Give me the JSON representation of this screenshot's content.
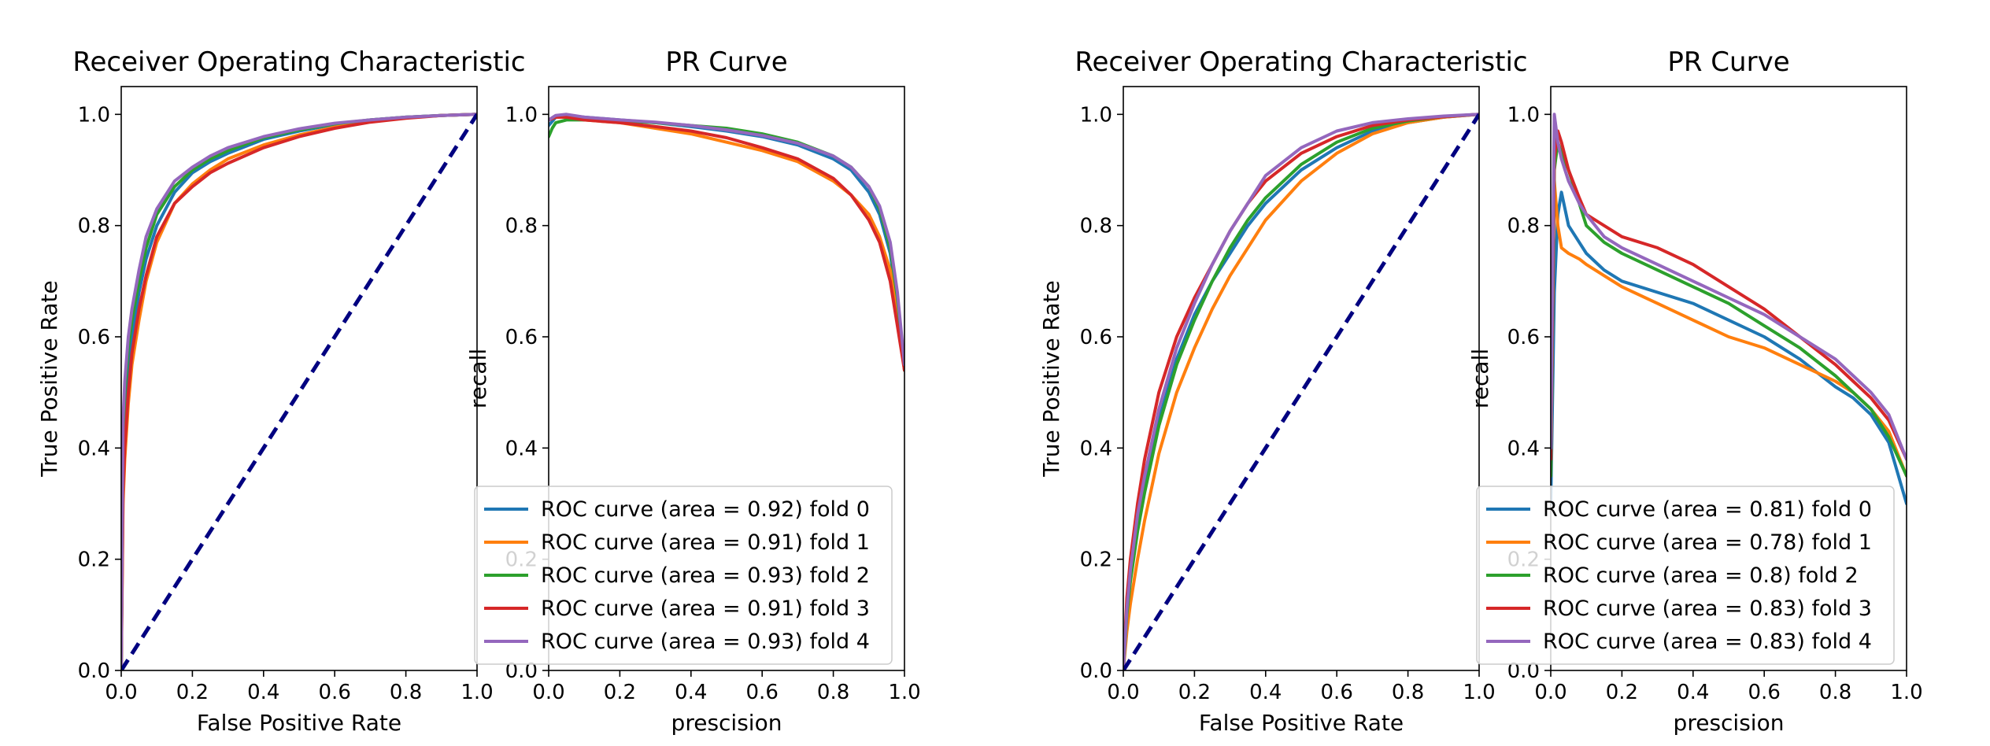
{
  "colors": {
    "fold0": "#1f77b4",
    "fold1": "#ff7f0e",
    "fold2": "#2ca02c",
    "fold3": "#d62728",
    "fold4": "#9467bd",
    "diagonal": "#000080"
  },
  "chart_data": [
    {
      "type": "line",
      "title": "Receiver Operating Characteristic",
      "xlabel": "False Positive Rate",
      "ylabel": "True Positive Rate",
      "xlim": [
        0,
        1
      ],
      "ylim": [
        0,
        1.05
      ],
      "xticks": [
        "0.0",
        "0.2",
        "0.4",
        "0.6",
        "0.8",
        "1.0"
      ],
      "yticks": [
        "0.0",
        "0.2",
        "0.4",
        "0.6",
        "0.8",
        "1.0"
      ],
      "diagonal": true,
      "series": [
        {
          "color_key": "fold0",
          "x": [
            0,
            0.005,
            0.01,
            0.02,
            0.03,
            0.05,
            0.07,
            0.1,
            0.15,
            0.2,
            0.25,
            0.3,
            0.4,
            0.5,
            0.6,
            0.7,
            0.8,
            0.9,
            1.0
          ],
          "y": [
            0,
            0.38,
            0.46,
            0.54,
            0.6,
            0.68,
            0.74,
            0.8,
            0.86,
            0.895,
            0.915,
            0.93,
            0.955,
            0.97,
            0.982,
            0.99,
            0.995,
            0.998,
            1.0
          ]
        },
        {
          "color_key": "fold1",
          "x": [
            0,
            0.005,
            0.01,
            0.02,
            0.03,
            0.05,
            0.07,
            0.1,
            0.15,
            0.2,
            0.25,
            0.3,
            0.4,
            0.5,
            0.6,
            0.7,
            0.8,
            0.9,
            1.0
          ],
          "y": [
            0,
            0.3,
            0.38,
            0.48,
            0.55,
            0.63,
            0.7,
            0.77,
            0.84,
            0.875,
            0.9,
            0.92,
            0.945,
            0.963,
            0.977,
            0.987,
            0.994,
            0.998,
            1.0
          ]
        },
        {
          "color_key": "fold2",
          "x": [
            0,
            0.005,
            0.01,
            0.02,
            0.03,
            0.05,
            0.07,
            0.1,
            0.15,
            0.2,
            0.25,
            0.3,
            0.4,
            0.5,
            0.6,
            0.7,
            0.8,
            0.9,
            1.0
          ],
          "y": [
            0,
            0.42,
            0.5,
            0.58,
            0.63,
            0.7,
            0.76,
            0.82,
            0.87,
            0.9,
            0.92,
            0.935,
            0.958,
            0.972,
            0.983,
            0.99,
            0.995,
            0.998,
            1.0
          ]
        },
        {
          "color_key": "fold3",
          "x": [
            0,
            0.005,
            0.01,
            0.02,
            0.03,
            0.05,
            0.07,
            0.1,
            0.15,
            0.2,
            0.25,
            0.3,
            0.4,
            0.5,
            0.6,
            0.7,
            0.8,
            0.9,
            1.0
          ],
          "y": [
            0,
            0.32,
            0.4,
            0.5,
            0.57,
            0.65,
            0.71,
            0.78,
            0.84,
            0.87,
            0.895,
            0.912,
            0.94,
            0.96,
            0.975,
            0.986,
            0.993,
            0.998,
            1.0
          ]
        },
        {
          "color_key": "fold4",
          "x": [
            0,
            0.005,
            0.01,
            0.02,
            0.03,
            0.05,
            0.07,
            0.1,
            0.15,
            0.2,
            0.25,
            0.3,
            0.4,
            0.5,
            0.6,
            0.7,
            0.8,
            0.9,
            1.0
          ],
          "y": [
            0,
            0.45,
            0.52,
            0.6,
            0.65,
            0.72,
            0.78,
            0.83,
            0.88,
            0.905,
            0.925,
            0.94,
            0.96,
            0.974,
            0.984,
            0.99,
            0.995,
            0.998,
            1.0
          ]
        }
      ]
    },
    {
      "type": "line",
      "title": "PR Curve",
      "xlabel": "prescision",
      "ylabel": "recall",
      "xlim": [
        0,
        1
      ],
      "ylim": [
        0,
        1.05
      ],
      "xticks": [
        "0.0",
        "0.2",
        "0.4",
        "0.6",
        "0.8",
        "1.0"
      ],
      "yticks": [
        "0.0",
        "0.2",
        "0.4",
        "0.6",
        "0.8",
        "1.0"
      ],
      "diagonal": false,
      "legend": {
        "placement": "lower-right",
        "labels": [
          "ROC curve (area = 0.92) fold 0",
          "ROC curve (area = 0.91) fold 1",
          "ROC curve (area = 0.93) fold 2",
          "ROC curve (area = 0.91) fold 3",
          "ROC curve (area = 0.93) fold 4"
        ]
      },
      "series": [
        {
          "color_key": "fold0",
          "x": [
            0,
            0.02,
            0.05,
            0.1,
            0.2,
            0.3,
            0.4,
            0.5,
            0.6,
            0.7,
            0.8,
            0.85,
            0.9,
            0.93,
            0.96,
            0.98,
            1.0
          ],
          "y": [
            0.98,
            0.995,
            0.998,
            0.995,
            0.99,
            0.985,
            0.978,
            0.97,
            0.96,
            0.945,
            0.92,
            0.9,
            0.86,
            0.82,
            0.75,
            0.66,
            0.54
          ]
        },
        {
          "color_key": "fold1",
          "x": [
            0,
            0.02,
            0.05,
            0.1,
            0.2,
            0.3,
            0.4,
            0.5,
            0.6,
            0.7,
            0.8,
            0.85,
            0.9,
            0.93,
            0.96,
            0.98,
            1.0
          ],
          "y": [
            0.99,
            0.995,
            0.995,
            0.99,
            0.985,
            0.975,
            0.965,
            0.95,
            0.935,
            0.915,
            0.88,
            0.855,
            0.82,
            0.78,
            0.72,
            0.64,
            0.54
          ]
        },
        {
          "color_key": "fold2",
          "x": [
            0,
            0.01,
            0.02,
            0.05,
            0.1,
            0.2,
            0.3,
            0.4,
            0.5,
            0.6,
            0.7,
            0.8,
            0.85,
            0.9,
            0.93,
            0.96,
            0.98,
            1.0
          ],
          "y": [
            0.96,
            0.975,
            0.985,
            0.99,
            0.99,
            0.988,
            0.985,
            0.98,
            0.975,
            0.965,
            0.95,
            0.925,
            0.905,
            0.87,
            0.83,
            0.76,
            0.67,
            0.54
          ]
        },
        {
          "color_key": "fold3",
          "x": [
            0,
            0.02,
            0.05,
            0.1,
            0.2,
            0.3,
            0.4,
            0.5,
            0.6,
            0.7,
            0.8,
            0.85,
            0.9,
            0.93,
            0.96,
            0.98,
            1.0
          ],
          "y": [
            0.99,
            0.995,
            0.995,
            0.99,
            0.985,
            0.978,
            0.97,
            0.958,
            0.94,
            0.92,
            0.885,
            0.855,
            0.81,
            0.77,
            0.7,
            0.62,
            0.54
          ]
        },
        {
          "color_key": "fold4",
          "x": [
            0,
            0.02,
            0.05,
            0.1,
            0.2,
            0.3,
            0.4,
            0.5,
            0.6,
            0.7,
            0.8,
            0.85,
            0.9,
            0.93,
            0.96,
            0.98,
            1.0
          ],
          "y": [
            0.99,
            0.998,
            1.0,
            0.995,
            0.99,
            0.986,
            0.98,
            0.972,
            0.962,
            0.948,
            0.925,
            0.905,
            0.87,
            0.835,
            0.77,
            0.68,
            0.55
          ]
        }
      ]
    },
    {
      "type": "line",
      "title": "Receiver Operating Characteristic",
      "xlabel": "False Positive Rate",
      "ylabel": "True Positive Rate",
      "xlim": [
        0,
        1
      ],
      "ylim": [
        0,
        1.05
      ],
      "xticks": [
        "0.0",
        "0.2",
        "0.4",
        "0.6",
        "0.8",
        "1.0"
      ],
      "yticks": [
        "0.0",
        "0.2",
        "0.4",
        "0.6",
        "0.8",
        "1.0"
      ],
      "diagonal": true,
      "series": [
        {
          "color_key": "fold0",
          "x": [
            0,
            0.01,
            0.02,
            0.04,
            0.06,
            0.08,
            0.1,
            0.15,
            0.2,
            0.25,
            0.3,
            0.35,
            0.4,
            0.5,
            0.6,
            0.7,
            0.8,
            0.9,
            1.0
          ],
          "y": [
            0,
            0.1,
            0.17,
            0.26,
            0.33,
            0.39,
            0.45,
            0.56,
            0.64,
            0.7,
            0.75,
            0.8,
            0.84,
            0.9,
            0.94,
            0.97,
            0.985,
            0.995,
            1.0
          ]
        },
        {
          "color_key": "fold1",
          "x": [
            0,
            0.01,
            0.02,
            0.04,
            0.06,
            0.08,
            0.1,
            0.15,
            0.2,
            0.25,
            0.3,
            0.35,
            0.4,
            0.5,
            0.6,
            0.7,
            0.8,
            0.9,
            1.0
          ],
          "y": [
            0,
            0.07,
            0.12,
            0.2,
            0.27,
            0.33,
            0.39,
            0.5,
            0.58,
            0.65,
            0.71,
            0.76,
            0.81,
            0.88,
            0.93,
            0.965,
            0.985,
            0.995,
            1.0
          ]
        },
        {
          "color_key": "fold2",
          "x": [
            0,
            0.01,
            0.02,
            0.04,
            0.06,
            0.08,
            0.1,
            0.15,
            0.2,
            0.25,
            0.3,
            0.35,
            0.4,
            0.5,
            0.6,
            0.7,
            0.8,
            0.9,
            1.0
          ],
          "y": [
            0,
            0.1,
            0.16,
            0.25,
            0.32,
            0.38,
            0.44,
            0.55,
            0.63,
            0.7,
            0.76,
            0.81,
            0.85,
            0.91,
            0.95,
            0.975,
            0.988,
            0.996,
            1.0
          ]
        },
        {
          "color_key": "fold3",
          "x": [
            0,
            0.01,
            0.02,
            0.04,
            0.06,
            0.08,
            0.1,
            0.15,
            0.2,
            0.25,
            0.3,
            0.35,
            0.4,
            0.5,
            0.6,
            0.7,
            0.8,
            0.9,
            1.0
          ],
          "y": [
            0,
            0.13,
            0.2,
            0.3,
            0.38,
            0.44,
            0.5,
            0.6,
            0.67,
            0.73,
            0.79,
            0.84,
            0.88,
            0.93,
            0.96,
            0.98,
            0.99,
            0.996,
            1.0
          ]
        },
        {
          "color_key": "fold4",
          "x": [
            0,
            0.01,
            0.02,
            0.04,
            0.06,
            0.08,
            0.1,
            0.15,
            0.2,
            0.25,
            0.3,
            0.35,
            0.4,
            0.5,
            0.6,
            0.7,
            0.8,
            0.9,
            1.0
          ],
          "y": [
            0,
            0.11,
            0.18,
            0.28,
            0.35,
            0.41,
            0.47,
            0.58,
            0.66,
            0.73,
            0.79,
            0.84,
            0.89,
            0.94,
            0.97,
            0.985,
            0.992,
            0.997,
            1.0
          ]
        }
      ]
    },
    {
      "type": "line",
      "title": "PR Curve",
      "xlabel": "prescision",
      "ylabel": "recall",
      "xlim": [
        0,
        1
      ],
      "ylim": [
        0,
        1.05
      ],
      "xticks": [
        "0.0",
        "0.2",
        "0.4",
        "0.6",
        "0.8",
        "1.0"
      ],
      "yticks": [
        "0.0",
        "0.2",
        "0.4",
        "0.6",
        "0.8",
        "1.0"
      ],
      "diagonal": false,
      "legend": {
        "placement": "lower-right",
        "labels": [
          "ROC curve (area = 0.81) fold 0",
          "ROC curve (area = 0.78) fold 1",
          "ROC curve (area = 0.8) fold 2",
          "ROC curve (area = 0.83) fold 3",
          "ROC curve (area = 0.83) fold 4"
        ]
      },
      "series": [
        {
          "color_key": "fold0",
          "x": [
            0,
            0.01,
            0.02,
            0.03,
            0.05,
            0.08,
            0.1,
            0.15,
            0.2,
            0.3,
            0.4,
            0.5,
            0.6,
            0.7,
            0.8,
            0.85,
            0.9,
            0.95,
            1.0
          ],
          "y": [
            0.3,
            0.68,
            0.82,
            0.86,
            0.8,
            0.77,
            0.75,
            0.72,
            0.7,
            0.68,
            0.66,
            0.63,
            0.6,
            0.56,
            0.51,
            0.49,
            0.46,
            0.41,
            0.3
          ]
        },
        {
          "color_key": "fold1",
          "x": [
            0,
            0.01,
            0.02,
            0.03,
            0.05,
            0.08,
            0.1,
            0.15,
            0.2,
            0.3,
            0.4,
            0.5,
            0.6,
            0.7,
            0.8,
            0.85,
            0.9,
            0.95,
            1.0
          ],
          "y": [
            0.35,
            0.88,
            0.8,
            0.76,
            0.75,
            0.74,
            0.73,
            0.71,
            0.69,
            0.66,
            0.63,
            0.6,
            0.58,
            0.55,
            0.52,
            0.5,
            0.47,
            0.43,
            0.35
          ]
        },
        {
          "color_key": "fold2",
          "x": [
            0,
            0.01,
            0.02,
            0.03,
            0.05,
            0.08,
            0.1,
            0.15,
            0.2,
            0.3,
            0.4,
            0.5,
            0.6,
            0.7,
            0.8,
            0.85,
            0.9,
            0.95,
            1.0
          ],
          "y": [
            0.35,
            0.9,
            0.95,
            0.93,
            0.9,
            0.84,
            0.8,
            0.77,
            0.75,
            0.72,
            0.69,
            0.66,
            0.62,
            0.58,
            0.53,
            0.5,
            0.47,
            0.42,
            0.35
          ]
        },
        {
          "color_key": "fold3",
          "x": [
            0,
            0.01,
            0.02,
            0.03,
            0.05,
            0.08,
            0.1,
            0.15,
            0.2,
            0.3,
            0.4,
            0.5,
            0.6,
            0.7,
            0.8,
            0.85,
            0.9,
            0.95,
            1.0
          ],
          "y": [
            0.38,
            0.92,
            0.97,
            0.95,
            0.9,
            0.85,
            0.82,
            0.8,
            0.78,
            0.76,
            0.73,
            0.69,
            0.65,
            0.6,
            0.55,
            0.52,
            0.49,
            0.45,
            0.38
          ]
        },
        {
          "color_key": "fold4",
          "x": [
            0,
            0.01,
            0.02,
            0.03,
            0.05,
            0.08,
            0.1,
            0.15,
            0.2,
            0.3,
            0.4,
            0.5,
            0.6,
            0.7,
            0.8,
            0.85,
            0.9,
            0.95,
            1.0
          ],
          "y": [
            0.4,
            1.0,
            0.95,
            0.92,
            0.88,
            0.84,
            0.82,
            0.78,
            0.76,
            0.73,
            0.7,
            0.67,
            0.64,
            0.6,
            0.56,
            0.53,
            0.5,
            0.46,
            0.38
          ]
        }
      ]
    }
  ]
}
